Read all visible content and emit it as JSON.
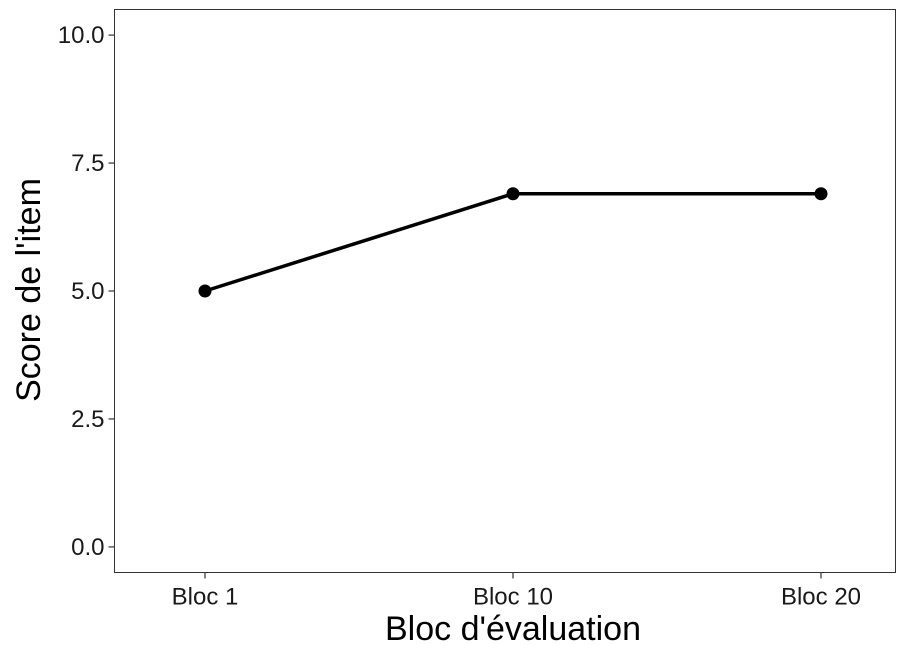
{
  "chart_data": {
    "type": "line",
    "categories": [
      "Bloc 1",
      "Bloc 10",
      "Bloc 20"
    ],
    "series": [
      {
        "values": [
          5.0,
          6.9,
          6.9
        ]
      }
    ],
    "xlabel": "Bloc d'évaluation",
    "ylabel": "Score de l'item",
    "ylim": [
      -0.5,
      10.5
    ],
    "yticks": [
      "0.0",
      "2.5",
      "5.0",
      "7.5",
      "10.0"
    ],
    "grid": false,
    "line_color": "#000000"
  }
}
